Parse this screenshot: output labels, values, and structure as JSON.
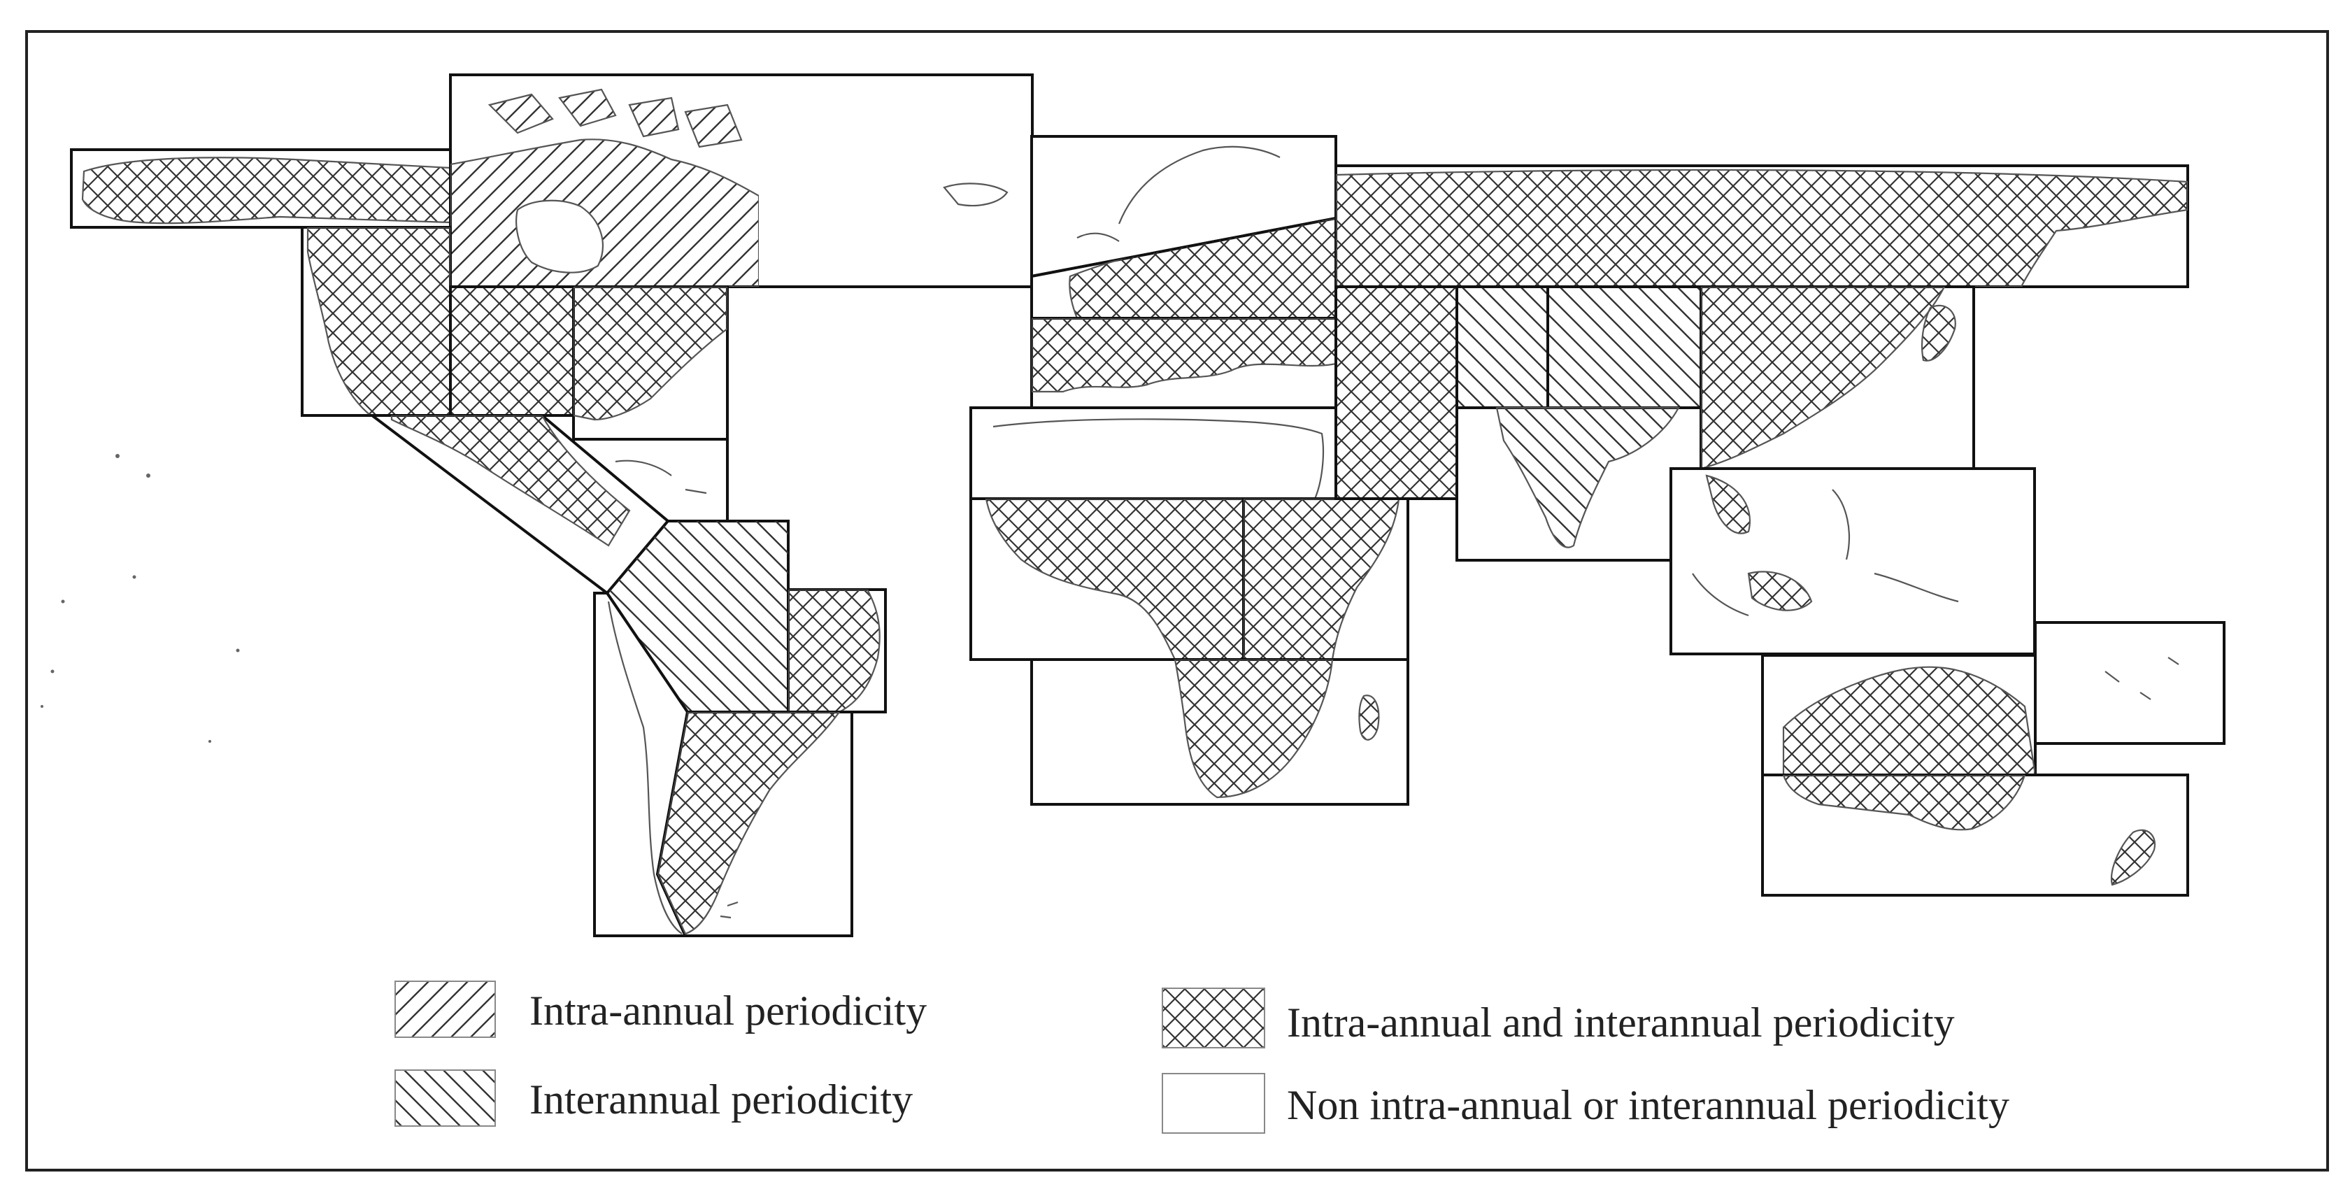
{
  "colors": {
    "hatch": "#333333",
    "box_border": "#111111",
    "coastline": "#555555",
    "frame": "#222222",
    "background": "#ffffff"
  },
  "pattern_names": {
    "intra": "forward-diagonal-hatch",
    "inter": "backward-diagonal-hatch",
    "both": "cross-hatch",
    "none": "blank"
  },
  "regions": [
    {
      "name": "alaska",
      "class": "both"
    },
    {
      "name": "canada-north",
      "class": "intra"
    },
    {
      "name": "canada-east",
      "class": "none"
    },
    {
      "name": "usa-west",
      "class": "both"
    },
    {
      "name": "usa-central",
      "class": "both"
    },
    {
      "name": "usa-east",
      "class": "both"
    },
    {
      "name": "caribbean",
      "class": "none"
    },
    {
      "name": "central-america",
      "class": "both"
    },
    {
      "name": "amazon",
      "class": "inter"
    },
    {
      "name": "brazil-east",
      "class": "both"
    },
    {
      "name": "south-america-west",
      "class": "none"
    },
    {
      "name": "south-america-south",
      "class": "both"
    },
    {
      "name": "scandinavia",
      "class": "none"
    },
    {
      "name": "europe-east",
      "class": "both"
    },
    {
      "name": "mediterranean",
      "class": "both"
    },
    {
      "name": "sahara",
      "class": "none"
    },
    {
      "name": "west-africa",
      "class": "both"
    },
    {
      "name": "east-africa",
      "class": "both"
    },
    {
      "name": "southern-africa",
      "class": "both"
    },
    {
      "name": "siberia",
      "class": "both"
    },
    {
      "name": "central-asia",
      "class": "both"
    },
    {
      "name": "asia-inter-1",
      "class": "inter"
    },
    {
      "name": "asia-inter-2",
      "class": "inter"
    },
    {
      "name": "india",
      "class": "inter"
    },
    {
      "name": "east-asia",
      "class": "both"
    },
    {
      "name": "southeast-asia",
      "class": "none"
    },
    {
      "name": "australia-north",
      "class": "both"
    },
    {
      "name": "pacific-islands",
      "class": "none"
    },
    {
      "name": "australia-south",
      "class": "both"
    }
  ],
  "legend": {
    "items": [
      {
        "label": "Intra-annual periodicity",
        "pattern": "intra"
      },
      {
        "label": "Interannual periodicity",
        "pattern": "inter"
      },
      {
        "label": "Intra-annual and interannual periodicity",
        "pattern": "both"
      },
      {
        "label": "Non intra-annual or interannual periodicity",
        "pattern": "none"
      }
    ]
  }
}
